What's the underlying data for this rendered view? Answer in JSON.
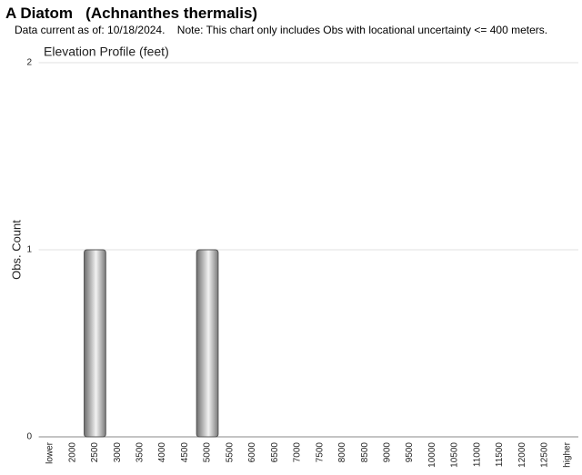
{
  "chart_data": {
    "type": "bar",
    "title": "A Diatom   (Achnanthes thermalis)",
    "subtitle": "Data current as of: 10/18/2024.    Note: This chart only includes Obs with locational uncertainty <= 400 meters.",
    "chart_title": "Elevation Profile (feet)",
    "y_label": "Obs. Count",
    "categories": [
      "lower",
      "2000",
      "2500",
      "3000",
      "3500",
      "4000",
      "4500",
      "5000",
      "5500",
      "6000",
      "6500",
      "7000",
      "7500",
      "8000",
      "8500",
      "9000",
      "9500",
      "10000",
      "10500",
      "11000",
      "11500",
      "12000",
      "12500",
      "higher"
    ],
    "values": [
      0,
      0,
      1,
      0,
      0,
      0,
      0,
      1,
      0,
      0,
      0,
      0,
      0,
      0,
      0,
      0,
      0,
      0,
      0,
      0,
      0,
      0,
      0,
      0
    ],
    "color": "#bdbdbd",
    "ylim": [
      0,
      2
    ],
    "yticks": [
      0,
      1,
      2
    ],
    "grid": true
  }
}
